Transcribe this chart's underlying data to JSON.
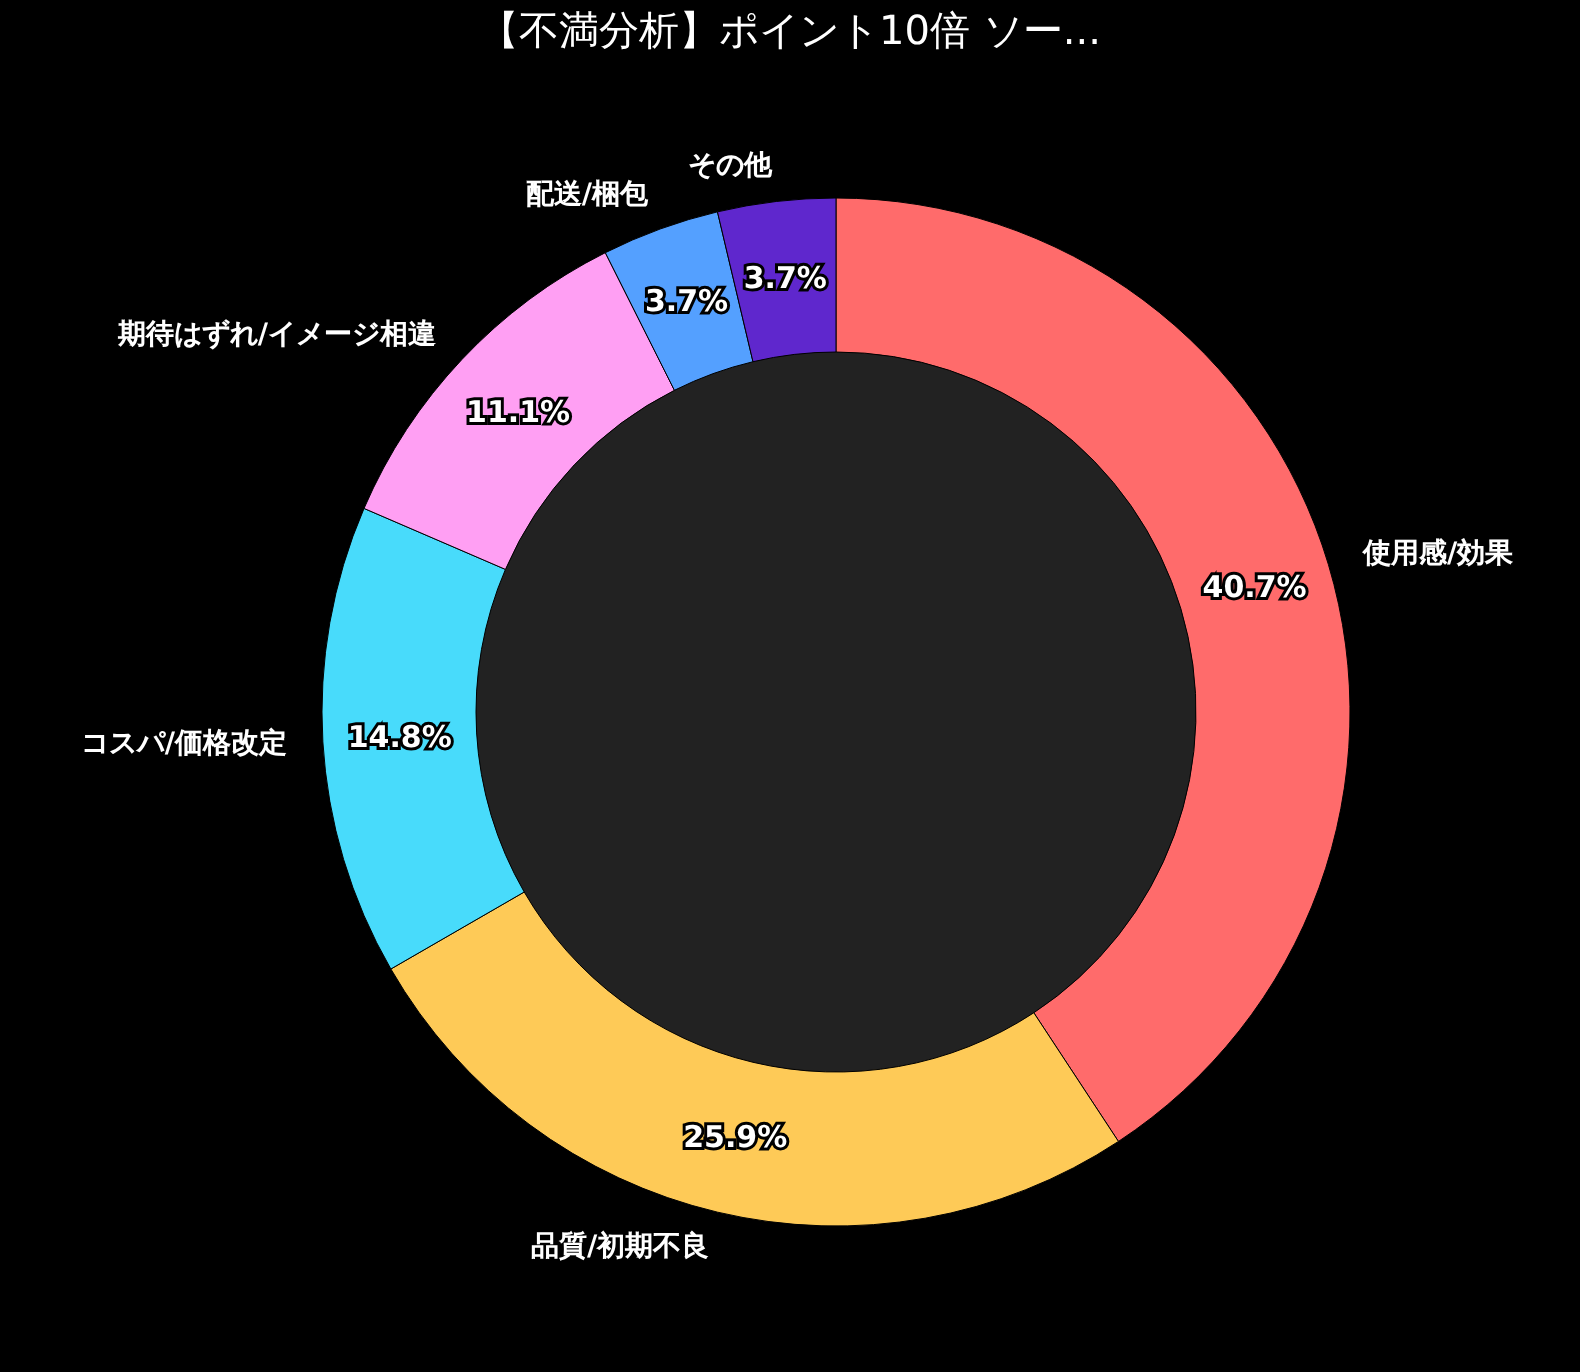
{
  "chart_data": {
    "type": "donut",
    "title": "【不満分析】ポイント10倍 ソー...",
    "categories": [
      "使用感/効果",
      "品質/初期不良",
      "コスパ/価格改定",
      "期待はずれ/イメージ相違",
      "配送/梱包",
      "その他"
    ],
    "values": [
      40.7,
      25.9,
      14.8,
      11.1,
      3.7,
      3.7
    ],
    "colors": [
      "#ff6b6b",
      "#feca57",
      "#48dbfb",
      "#ff9ff3",
      "#54a0ff",
      "#5f27cd"
    ],
    "value_labels": [
      "40.7%",
      "25.9%",
      "14.8%",
      "11.1%",
      "3.7%",
      "3.7%"
    ],
    "legend": false
  }
}
